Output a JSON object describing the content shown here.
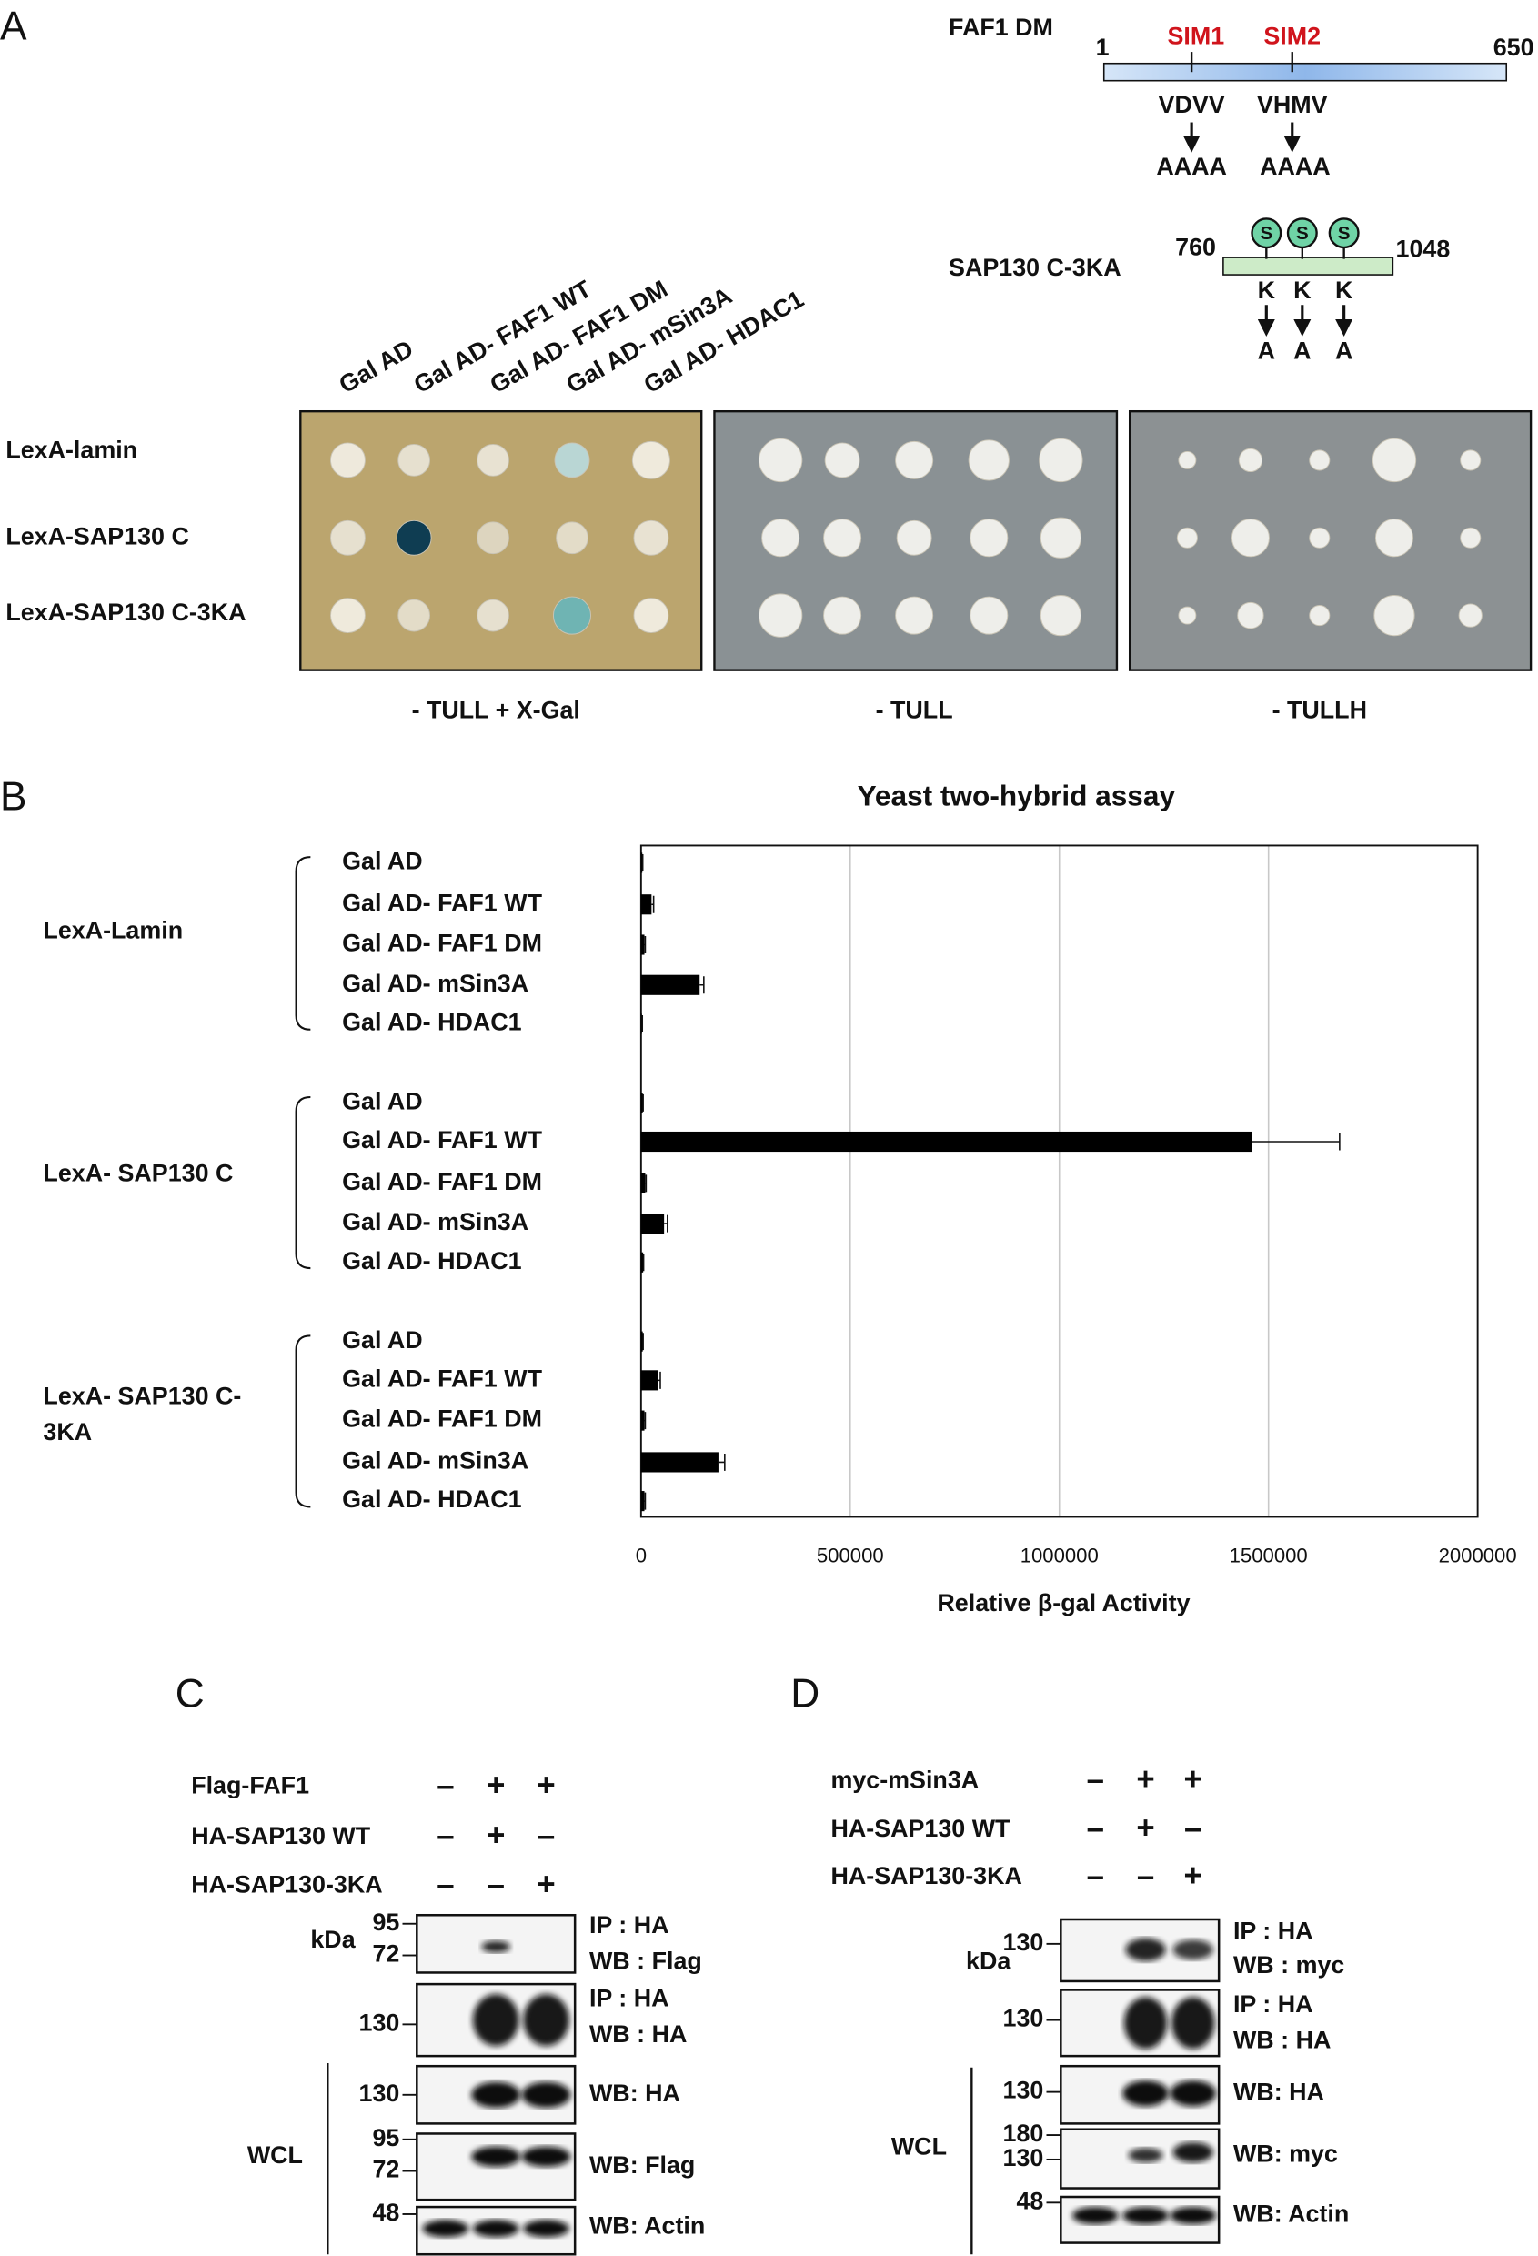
{
  "panel_a": {
    "label": "A",
    "faf1_dm": {
      "name": "FAF1 DM",
      "start": "1",
      "end": "650",
      "sites": [
        {
          "name": "SIM1",
          "seq": "VDVV",
          "mut": "AAAA"
        },
        {
          "name": "SIM2",
          "seq": "VHMV",
          "mut": "AAAA"
        }
      ]
    },
    "sap130": {
      "name": "SAP130 C-3KA",
      "start": "760",
      "end": "1048",
      "sumo": [
        "S",
        "S",
        "S"
      ],
      "mutations": [
        {
          "from": "K",
          "to": "A"
        },
        {
          "from": "K",
          "to": "A"
        },
        {
          "from": "K",
          "to": "A"
        }
      ]
    },
    "columns": [
      "Gal AD",
      "Gal AD- FAF1 WT",
      "Gal AD- FAF1 DM",
      "Gal AD- mSin3A",
      "Gal AD- HDAC1"
    ],
    "rows": [
      "LexA-lamin",
      "LexA-SAP130 C",
      "LexA-SAP130 C-3KA"
    ],
    "plates": [
      "- TULL + X-Gal",
      "- TULL",
      "- TULLH"
    ]
  },
  "panel_b": {
    "label": "B",
    "chart_data": {
      "type": "bar",
      "title": "Yeast two-hybrid assay",
      "x_label": "Relative β-gal Activity",
      "groups": [
        {
          "lines": [
            "LexA-Lamin"
          ]
        },
        {
          "lines": [
            "LexA- SAP130 C"
          ]
        },
        {
          "lines": [
            "LexA- SAP130 C-",
            "3KA"
          ]
        }
      ],
      "categories": [
        "Gal AD",
        "Gal AD- FAF1 WT",
        "Gal AD- FAF1 DM",
        "Gal AD- mSin3A",
        "Gal AD- HDAC1",
        "Gal AD",
        "Gal AD- FAF1 WT",
        "Gal AD- FAF1 DM",
        "Gal AD- mSin3A",
        "Gal AD- HDAC1",
        "Gal AD",
        "Gal AD- FAF1 WT",
        "Gal AD- FAF1 DM",
        "Gal AD- mSin3A",
        "Gal AD- HDAC1"
      ],
      "values": [
        3000,
        25000,
        8000,
        140000,
        2000,
        4000,
        1460000,
        10000,
        55000,
        5000,
        4000,
        40000,
        8000,
        185000,
        8000
      ],
      "errors": [
        1000,
        5000,
        2000,
        10000,
        1000,
        1000,
        210000,
        2000,
        8000,
        1000,
        1000,
        6000,
        2000,
        15000,
        2000
      ],
      "color": "#000000",
      "xlim": [
        0,
        2000000
      ],
      "xticks": [
        0,
        500000,
        1000000,
        1500000,
        2000000
      ],
      "grid": true
    }
  },
  "panel_c": {
    "label": "C",
    "conditions": [
      {
        "name": "Flag-FAF1",
        "signs": [
          "–",
          "+",
          "+"
        ]
      },
      {
        "name": "HA-SAP130 WT",
        "signs": [
          "–",
          "+",
          "–"
        ]
      },
      {
        "name": "HA-SAP130-3KA",
        "signs": [
          "–",
          "–",
          "+"
        ]
      }
    ],
    "kda": "kDa",
    "wcl": "WCL",
    "blots": [
      {
        "markers": [
          "95",
          "72"
        ],
        "labels": [
          "IP : HA",
          "WB : Flag"
        ]
      },
      {
        "markers": [
          "130"
        ],
        "labels": [
          "IP : HA",
          "WB : HA"
        ]
      },
      {
        "markers": [
          "130"
        ],
        "labels": [
          "WB: HA"
        ]
      },
      {
        "markers": [
          "95",
          "72"
        ],
        "labels": [
          "WB: Flag"
        ]
      },
      {
        "markers": [
          "48"
        ],
        "labels": [
          "WB: Actin"
        ]
      }
    ]
  },
  "panel_d": {
    "label": "D",
    "conditions": [
      {
        "name": "myc-mSin3A",
        "signs": [
          "–",
          "+",
          "+"
        ]
      },
      {
        "name": "HA-SAP130 WT",
        "signs": [
          "–",
          "+",
          "–"
        ]
      },
      {
        "name": "HA-SAP130-3KA",
        "signs": [
          "–",
          "–",
          "+"
        ]
      }
    ],
    "kda": "kDa",
    "wcl": "WCL",
    "blots": [
      {
        "markers": [
          "130"
        ],
        "labels": [
          "IP : HA",
          "WB : myc"
        ]
      },
      {
        "markers": [
          "130"
        ],
        "labels": [
          "IP : HA",
          "WB : HA"
        ]
      },
      {
        "markers": [
          "130"
        ],
        "labels": [
          "WB: HA"
        ]
      },
      {
        "markers": [
          "180",
          "130"
        ],
        "labels": [
          "WB: myc"
        ]
      },
      {
        "markers": [
          "48"
        ],
        "labels": [
          "WB: Actin"
        ]
      }
    ]
  }
}
